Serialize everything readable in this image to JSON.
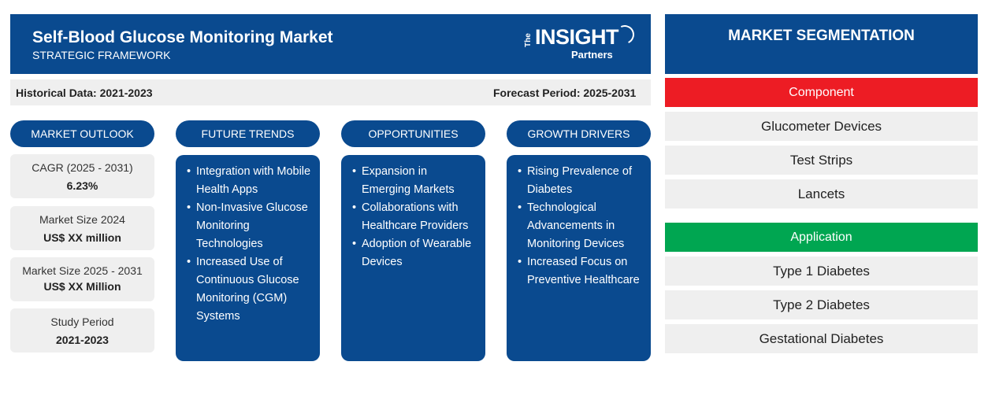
{
  "header": {
    "title": "Self-Blood Glucose Monitoring Market",
    "subtitle": "STRATEGIC FRAMEWORK"
  },
  "logo": {
    "the": "The",
    "insight": "INSIGHT",
    "partners": "Partners"
  },
  "period": {
    "historical": "Historical Data: 2021-2023",
    "forecast": "Forecast Period: 2025-2031"
  },
  "columns": {
    "outlook": "MARKET OUTLOOK",
    "trends": "FUTURE TRENDS",
    "opportunities": "OPPORTUNITIES",
    "drivers": "GROWTH DRIVERS"
  },
  "outlook": [
    {
      "label": "CAGR (2025 - 2031)",
      "value": "6.23%"
    },
    {
      "label": "Market Size 2024",
      "value": "US$ XX million"
    },
    {
      "label": "Market Size 2025 - 2031",
      "value": "US$ XX Million"
    },
    {
      "label": "Study Period",
      "value": "2021-2023"
    }
  ],
  "trends": [
    "Integration with Mobile Health Apps",
    "Non-Invasive Glucose Monitoring Technologies",
    "Increased Use of Continuous Glucose Monitoring (CGM) Systems"
  ],
  "opportunities": [
    "Expansion in Emerging Markets",
    "Collaborations with Healthcare Providers",
    "Adoption of Wearable Devices"
  ],
  "drivers": [
    "Rising Prevalence of Diabetes",
    "Technological Advancements in Monitoring Devices",
    "Increased Focus on Preventive Healthcare"
  ],
  "segmentation": {
    "title": "MARKET SEGMENTATION",
    "component": {
      "label": "Component",
      "color": "#ed1c24",
      "items": [
        "Glucometer Devices",
        "Test Strips",
        "Lancets"
      ]
    },
    "application": {
      "label": "Application",
      "color": "#00a651",
      "items": [
        "Type 1 Diabetes",
        "Type 2 Diabetes",
        "Gestational Diabetes"
      ]
    }
  },
  "colors": {
    "primary": "#0a4a8f",
    "panel": "#efefef"
  }
}
